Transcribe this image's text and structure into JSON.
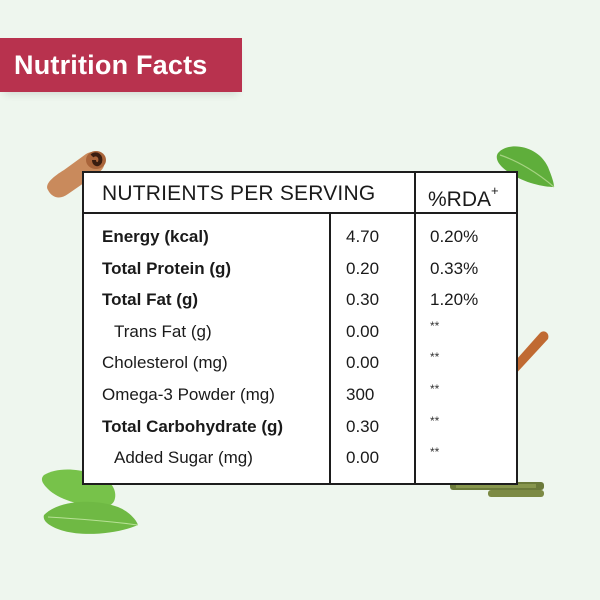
{
  "banner": {
    "title": "Nutrition Facts"
  },
  "colors": {
    "background": "#eef6ee",
    "banner": "#b8324e",
    "banner_text": "#ffffff",
    "table_border": "#1d1d1d",
    "table_bg": "#ffffff"
  },
  "table": {
    "header": {
      "nutrients": "NUTRIENTS PER SERVING",
      "rda": "%RDA",
      "rda_sup": "+"
    },
    "rows": [
      {
        "name": "Energy (kcal)",
        "value": "4.70",
        "rda": "0.20%",
        "bold": true,
        "indent": false
      },
      {
        "name": "Total Protein (g)",
        "value": "0.20",
        "rda": "0.33%",
        "bold": true,
        "indent": false
      },
      {
        "name": "Total Fat (g)",
        "value": "0.30",
        "rda": "1.20%",
        "bold": true,
        "indent": false
      },
      {
        "name": "Trans Fat (g)",
        "value": "0.00",
        "rda": "**",
        "bold": false,
        "indent": true
      },
      {
        "name": "Cholesterol (mg)",
        "value": "0.00",
        "rda": "**",
        "bold": false,
        "indent": false
      },
      {
        "name": "Omega-3 Powder (mg)",
        "value": "300",
        "rda": "**",
        "bold": false,
        "indent": false
      },
      {
        "name": "Total Carbohydrate (g)",
        "value": "0.30",
        "rda": "**",
        "bold": true,
        "indent": false
      },
      {
        "name": "Added Sugar (mg)",
        "value": "0.00",
        "rda": "**",
        "bold": false,
        "indent": true
      }
    ]
  },
  "decorations": [
    {
      "icon": "cinnamon-roll-icon",
      "position": "top-left"
    },
    {
      "icon": "leaf-icon",
      "position": "top-right"
    },
    {
      "icon": "cinnamon-stick-icon",
      "position": "right"
    },
    {
      "icon": "mint-leaves-icon",
      "position": "bottom-left"
    },
    {
      "icon": "herb-twig-icon",
      "position": "bottom-right"
    }
  ]
}
